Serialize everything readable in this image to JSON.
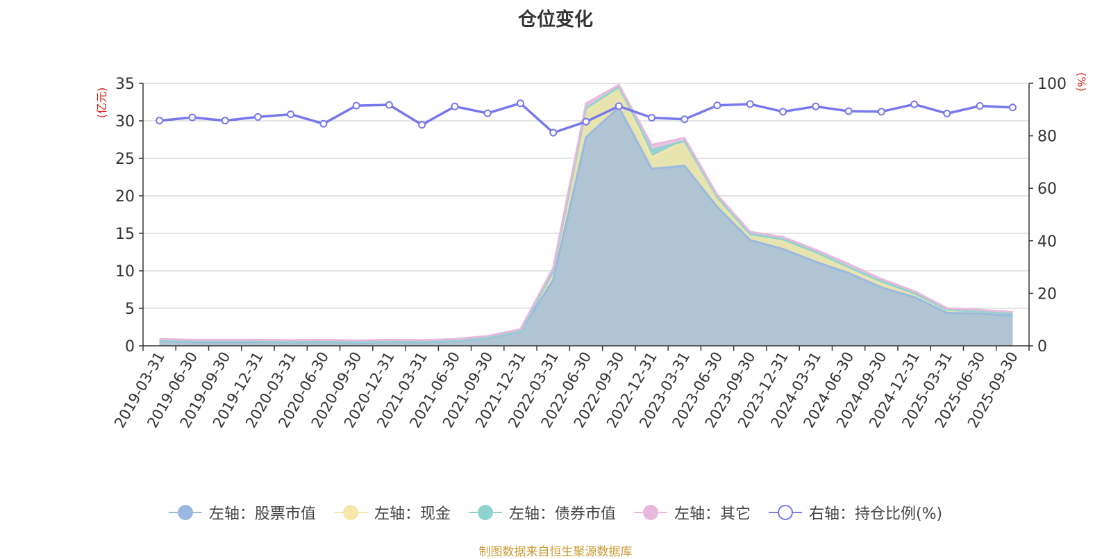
{
  "chart_data": {
    "type": "area",
    "title": "仓位变化",
    "left_axis": {
      "unit_label": "(亿元)",
      "min": 0,
      "max": 35,
      "ticks": [
        0,
        5,
        10,
        15,
        20,
        25,
        30,
        35
      ]
    },
    "right_axis": {
      "unit_label": "(%)",
      "min": 0,
      "max": 100,
      "ticks": [
        0,
        20,
        40,
        60,
        80,
        100
      ]
    },
    "categories": [
      "2019-03-31",
      "2019-06-30",
      "2019-09-30",
      "2019-12-31",
      "2020-03-31",
      "2020-06-30",
      "2020-09-30",
      "2020-12-31",
      "2021-03-31",
      "2021-06-30",
      "2021-09-30",
      "2021-12-31",
      "2022-03-31",
      "2022-06-30",
      "2022-09-30",
      "2022-12-31",
      "2023-03-31",
      "2023-06-30",
      "2023-09-30",
      "2023-12-31",
      "2024-03-31",
      "2024-06-30",
      "2024-09-30",
      "2024-12-31",
      "2025-03-31",
      "2025-06-30",
      "2025-09-30"
    ],
    "series": [
      {
        "name": "左轴：股票市值",
        "axis": "left",
        "stack": true,
        "color": "#9ab8e0",
        "values": [
          0.6,
          0.5,
          0.5,
          0.5,
          0.45,
          0.5,
          0.4,
          0.5,
          0.45,
          0.6,
          1.0,
          1.9,
          8.8,
          27.8,
          31.8,
          23.6,
          24.0,
          18.5,
          14.1,
          12.9,
          11.2,
          9.7,
          7.8,
          6.5,
          4.4,
          4.3,
          4.0
        ]
      },
      {
        "name": "左轴：现金",
        "axis": "left",
        "stack": true,
        "color": "#f6e7a8",
        "values": [
          0.1,
          0.1,
          0.1,
          0.1,
          0.1,
          0.1,
          0.1,
          0.1,
          0.1,
          0.1,
          0.1,
          0.1,
          1.1,
          3.9,
          2.7,
          1.5,
          3.3,
          1.3,
          0.8,
          1.3,
          1.3,
          0.8,
          0.8,
          0.5,
          0.4,
          0.3,
          0.3
        ]
      },
      {
        "name": "左轴：债券市值",
        "axis": "left",
        "stack": true,
        "color": "#8fd3d0",
        "values": [
          0,
          0,
          0,
          0,
          0,
          0,
          0,
          0,
          0,
          0,
          0,
          0,
          0,
          0,
          0,
          1.0,
          0,
          0,
          0,
          0,
          0,
          0,
          0,
          0,
          0,
          0,
          0
        ]
      },
      {
        "name": "左轴：其它",
        "axis": "left",
        "stack": true,
        "color": "#e8b8dc",
        "values": [
          0.2,
          0.2,
          0.2,
          0.2,
          0.2,
          0.2,
          0.2,
          0.2,
          0.2,
          0.2,
          0.2,
          0.2,
          0.5,
          0.6,
          0.3,
          0.7,
          0.4,
          0.3,
          0.3,
          0.3,
          0.3,
          0.4,
          0.3,
          0.3,
          0.2,
          0.2,
          0.2
        ]
      },
      {
        "name": "右轴：持仓比例(%)",
        "axis": "right",
        "type": "line",
        "color": "#7777ee",
        "values": [
          85.8,
          87.0,
          85.8,
          87.2,
          88.2,
          84.6,
          91.5,
          91.8,
          84.2,
          91.2,
          88.6,
          92.4,
          81.2,
          85.4,
          91.3,
          86.9,
          86.3,
          91.6,
          92.1,
          89.2,
          91.2,
          89.4,
          89.2,
          92.0,
          88.5,
          91.4,
          90.8
        ]
      }
    ],
    "legend_position": "bottom",
    "grid": true
  },
  "footer": {
    "source": "制图数据来自恒生聚源数据库"
  }
}
